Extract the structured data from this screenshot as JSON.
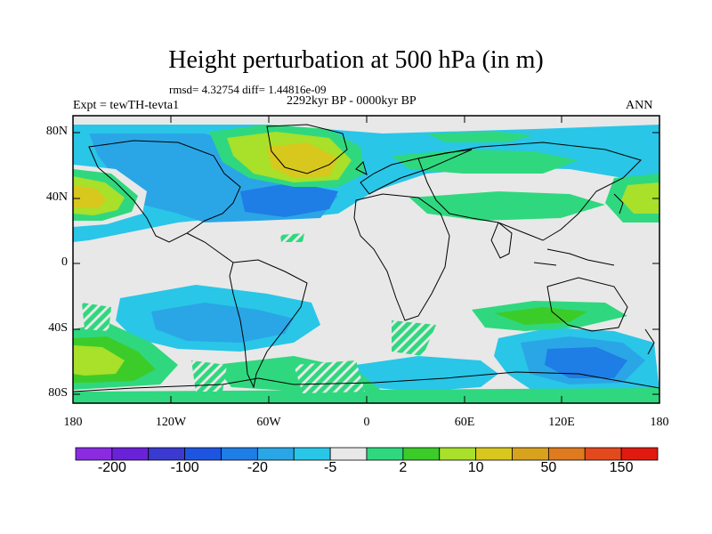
{
  "title": "Height perturbation at 500 hPa (in m)",
  "stats": "rmsd= 4.32754 diff= 1.44816e-09",
  "period": "2292kyr BP - 0000kyr BP",
  "expt": "Expt = tewTH-tevta1",
  "season": "ANN",
  "lat_labels": [
    "80N",
    "40N",
    "0",
    "40S",
    "80S"
  ],
  "lon_labels": [
    "180",
    "120W",
    "60W",
    "0",
    "60E",
    "120E",
    "180"
  ],
  "colorbar": {
    "labels": [
      "-200",
      "-100",
      "-20",
      "-5",
      "2",
      "10",
      "50",
      "150"
    ],
    "colors": [
      "#8a2be2",
      "#6a22d8",
      "#3a3ad0",
      "#1e55e0",
      "#1f7de6",
      "#2aa6e6",
      "#29c6e8",
      "#e8e8e8",
      "#2fd87e",
      "#3ccc2a",
      "#a8e02a",
      "#d8c81e",
      "#d8a21e",
      "#e07a1e",
      "#e24a1e",
      "#e01a10"
    ]
  },
  "colors": {
    "neutral": "#e8e8e8",
    "neg_light": "#29c6e8",
    "neg_mid": "#2aa6e6",
    "neg_dark": "#1f7de6",
    "pos_light": "#2fd87e",
    "pos_mid": "#3ccc2a",
    "pos_yellow": "#a8e02a",
    "pos_orange": "#d8a21e"
  }
}
